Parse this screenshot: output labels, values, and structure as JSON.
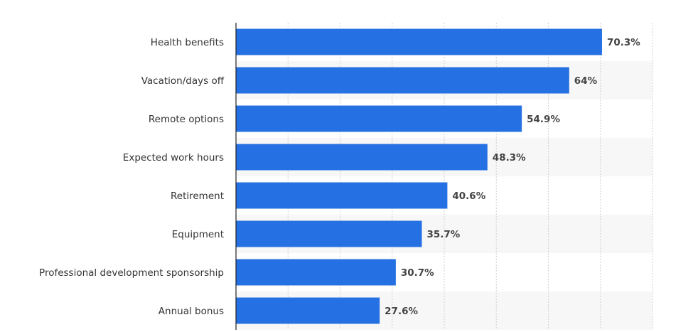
{
  "chart_data": {
    "type": "bar",
    "orientation": "horizontal",
    "categories": [
      "Health benefits",
      "Vacation/days off",
      "Remote options",
      "Expected work hours",
      "Retirement",
      "Equipment",
      "Professional development sponsorship",
      "Annual bonus"
    ],
    "values": [
      70.3,
      64,
      54.9,
      48.3,
      40.6,
      35.7,
      30.7,
      27.6
    ],
    "value_labels": [
      "70.3%",
      "64%",
      "54.9%",
      "48.3%",
      "40.6%",
      "35.7%",
      "30.7%",
      "27.6%"
    ],
    "xlim": [
      0,
      80
    ],
    "grid": true,
    "legend": "none",
    "bar_color": "#2570e2"
  }
}
